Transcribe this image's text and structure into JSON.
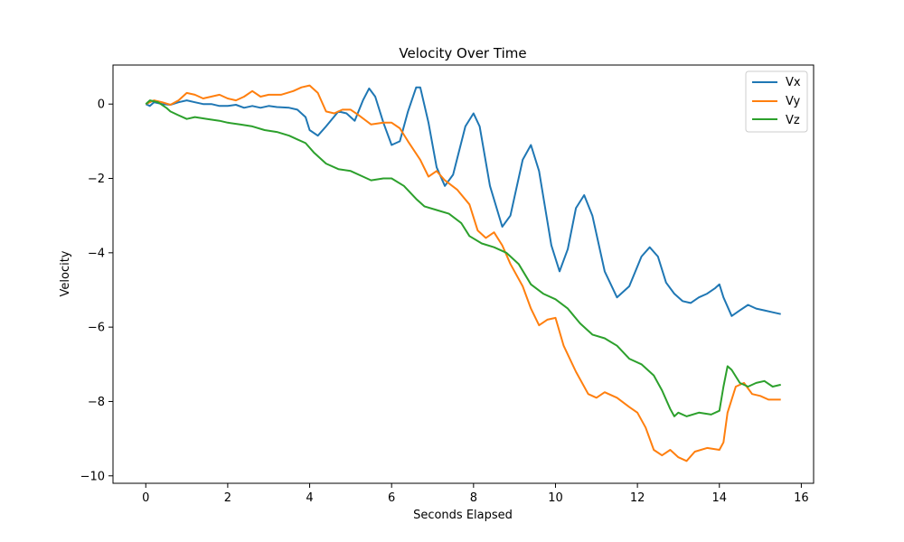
{
  "chart_data": {
    "type": "line",
    "title": "Velocity Over Time",
    "xlabel": "Seconds Elapsed",
    "ylabel": "Velocity",
    "xlim": [
      -0.8,
      16.3
    ],
    "ylim": [
      -10.2,
      1.05
    ],
    "xticks": [
      0,
      2,
      4,
      6,
      8,
      10,
      12,
      14,
      16
    ],
    "yticks": [
      0,
      -2,
      -4,
      -6,
      -8,
      -10
    ],
    "grid": false,
    "legend_position": "top-right",
    "series": [
      {
        "name": "Vx",
        "color": "#1f77b4",
        "points": [
          [
            0.0,
            0.0
          ],
          [
            0.1,
            -0.05
          ],
          [
            0.2,
            0.05
          ],
          [
            0.4,
            0.0
          ],
          [
            0.6,
            -0.02
          ],
          [
            0.8,
            0.05
          ],
          [
            1.0,
            0.1
          ],
          [
            1.2,
            0.05
          ],
          [
            1.4,
            0.0
          ],
          [
            1.6,
            0.0
          ],
          [
            1.8,
            -0.05
          ],
          [
            2.0,
            -0.05
          ],
          [
            2.2,
            -0.02
          ],
          [
            2.4,
            -0.1
          ],
          [
            2.6,
            -0.05
          ],
          [
            2.8,
            -0.1
          ],
          [
            3.0,
            -0.05
          ],
          [
            3.2,
            -0.08
          ],
          [
            3.5,
            -0.1
          ],
          [
            3.7,
            -0.15
          ],
          [
            3.9,
            -0.35
          ],
          [
            4.0,
            -0.7
          ],
          [
            4.2,
            -0.85
          ],
          [
            4.4,
            -0.6
          ],
          [
            4.7,
            -0.2
          ],
          [
            4.9,
            -0.25
          ],
          [
            5.1,
            -0.45
          ],
          [
            5.3,
            0.1
          ],
          [
            5.45,
            0.42
          ],
          [
            5.6,
            0.2
          ],
          [
            5.8,
            -0.5
          ],
          [
            6.0,
            -1.1
          ],
          [
            6.2,
            -1.0
          ],
          [
            6.4,
            -0.2
          ],
          [
            6.6,
            0.45
          ],
          [
            6.7,
            0.45
          ],
          [
            6.9,
            -0.5
          ],
          [
            7.1,
            -1.7
          ],
          [
            7.3,
            -2.2
          ],
          [
            7.5,
            -1.9
          ],
          [
            7.8,
            -0.6
          ],
          [
            8.0,
            -0.25
          ],
          [
            8.15,
            -0.6
          ],
          [
            8.4,
            -2.2
          ],
          [
            8.7,
            -3.3
          ],
          [
            8.9,
            -3.0
          ],
          [
            9.2,
            -1.5
          ],
          [
            9.4,
            -1.1
          ],
          [
            9.6,
            -1.8
          ],
          [
            9.9,
            -3.8
          ],
          [
            10.1,
            -4.5
          ],
          [
            10.3,
            -3.9
          ],
          [
            10.5,
            -2.8
          ],
          [
            10.7,
            -2.45
          ],
          [
            10.9,
            -3.0
          ],
          [
            11.2,
            -4.5
          ],
          [
            11.5,
            -5.2
          ],
          [
            11.8,
            -4.9
          ],
          [
            12.1,
            -4.1
          ],
          [
            12.3,
            -3.85
          ],
          [
            12.5,
            -4.1
          ],
          [
            12.7,
            -4.8
          ],
          [
            12.9,
            -5.1
          ],
          [
            13.1,
            -5.3
          ],
          [
            13.3,
            -5.35
          ],
          [
            13.5,
            -5.2
          ],
          [
            13.7,
            -5.1
          ],
          [
            13.9,
            -4.95
          ],
          [
            14.0,
            -4.85
          ],
          [
            14.1,
            -5.2
          ],
          [
            14.3,
            -5.7
          ],
          [
            14.5,
            -5.55
          ],
          [
            14.7,
            -5.4
          ],
          [
            14.9,
            -5.5
          ],
          [
            15.1,
            -5.55
          ],
          [
            15.3,
            -5.6
          ],
          [
            15.5,
            -5.65
          ]
        ]
      },
      {
        "name": "Vy",
        "color": "#ff7f0e",
        "points": [
          [
            0.0,
            0.0
          ],
          [
            0.2,
            0.1
          ],
          [
            0.4,
            0.05
          ],
          [
            0.6,
            -0.02
          ],
          [
            0.8,
            0.1
          ],
          [
            1.0,
            0.3
          ],
          [
            1.2,
            0.25
          ],
          [
            1.4,
            0.15
          ],
          [
            1.8,
            0.25
          ],
          [
            2.0,
            0.15
          ],
          [
            2.2,
            0.1
          ],
          [
            2.4,
            0.2
          ],
          [
            2.6,
            0.35
          ],
          [
            2.8,
            0.2
          ],
          [
            3.0,
            0.25
          ],
          [
            3.3,
            0.25
          ],
          [
            3.6,
            0.35
          ],
          [
            3.8,
            0.45
          ],
          [
            4.0,
            0.5
          ],
          [
            4.2,
            0.3
          ],
          [
            4.4,
            -0.2
          ],
          [
            4.6,
            -0.25
          ],
          [
            4.8,
            -0.15
          ],
          [
            5.0,
            -0.15
          ],
          [
            5.2,
            -0.3
          ],
          [
            5.5,
            -0.55
          ],
          [
            5.8,
            -0.5
          ],
          [
            6.0,
            -0.5
          ],
          [
            6.2,
            -0.65
          ],
          [
            6.4,
            -1.0
          ],
          [
            6.7,
            -1.5
          ],
          [
            6.9,
            -1.95
          ],
          [
            7.1,
            -1.8
          ],
          [
            7.3,
            -2.05
          ],
          [
            7.6,
            -2.3
          ],
          [
            7.9,
            -2.7
          ],
          [
            8.1,
            -3.4
          ],
          [
            8.3,
            -3.6
          ],
          [
            8.5,
            -3.45
          ],
          [
            8.7,
            -3.8
          ],
          [
            8.9,
            -4.3
          ],
          [
            9.2,
            -4.9
          ],
          [
            9.4,
            -5.5
          ],
          [
            9.6,
            -5.95
          ],
          [
            9.8,
            -5.8
          ],
          [
            10.0,
            -5.75
          ],
          [
            10.2,
            -6.5
          ],
          [
            10.5,
            -7.2
          ],
          [
            10.8,
            -7.8
          ],
          [
            11.0,
            -7.9
          ],
          [
            11.2,
            -7.75
          ],
          [
            11.5,
            -7.9
          ],
          [
            11.8,
            -8.15
          ],
          [
            12.0,
            -8.3
          ],
          [
            12.2,
            -8.7
          ],
          [
            12.4,
            -9.3
          ],
          [
            12.6,
            -9.45
          ],
          [
            12.8,
            -9.3
          ],
          [
            13.0,
            -9.5
          ],
          [
            13.2,
            -9.6
          ],
          [
            13.4,
            -9.35
          ],
          [
            13.7,
            -9.25
          ],
          [
            14.0,
            -9.3
          ],
          [
            14.1,
            -9.1
          ],
          [
            14.2,
            -8.3
          ],
          [
            14.4,
            -7.6
          ],
          [
            14.6,
            -7.5
          ],
          [
            14.8,
            -7.8
          ],
          [
            15.0,
            -7.85
          ],
          [
            15.2,
            -7.95
          ],
          [
            15.5,
            -7.95
          ]
        ]
      },
      {
        "name": "Vz",
        "color": "#2ca02c",
        "points": [
          [
            0.0,
            0.0
          ],
          [
            0.1,
            0.1
          ],
          [
            0.3,
            0.05
          ],
          [
            0.5,
            -0.1
          ],
          [
            0.6,
            -0.2
          ],
          [
            0.8,
            -0.3
          ],
          [
            1.0,
            -0.4
          ],
          [
            1.2,
            -0.35
          ],
          [
            1.5,
            -0.4
          ],
          [
            1.8,
            -0.45
          ],
          [
            2.0,
            -0.5
          ],
          [
            2.3,
            -0.55
          ],
          [
            2.6,
            -0.6
          ],
          [
            2.9,
            -0.7
          ],
          [
            3.2,
            -0.75
          ],
          [
            3.5,
            -0.85
          ],
          [
            3.7,
            -0.95
          ],
          [
            3.9,
            -1.05
          ],
          [
            4.1,
            -1.3
          ],
          [
            4.4,
            -1.6
          ],
          [
            4.7,
            -1.75
          ],
          [
            5.0,
            -1.8
          ],
          [
            5.3,
            -1.95
          ],
          [
            5.5,
            -2.05
          ],
          [
            5.8,
            -2.0
          ],
          [
            6.0,
            -2.0
          ],
          [
            6.3,
            -2.2
          ],
          [
            6.6,
            -2.55
          ],
          [
            6.8,
            -2.75
          ],
          [
            7.1,
            -2.85
          ],
          [
            7.4,
            -2.95
          ],
          [
            7.7,
            -3.2
          ],
          [
            7.9,
            -3.55
          ],
          [
            8.2,
            -3.75
          ],
          [
            8.5,
            -3.85
          ],
          [
            8.8,
            -4.0
          ],
          [
            9.1,
            -4.3
          ],
          [
            9.4,
            -4.85
          ],
          [
            9.7,
            -5.1
          ],
          [
            10.0,
            -5.25
          ],
          [
            10.3,
            -5.5
          ],
          [
            10.6,
            -5.9
          ],
          [
            10.9,
            -6.2
          ],
          [
            11.2,
            -6.3
          ],
          [
            11.5,
            -6.5
          ],
          [
            11.8,
            -6.85
          ],
          [
            12.1,
            -7.0
          ],
          [
            12.4,
            -7.3
          ],
          [
            12.6,
            -7.7
          ],
          [
            12.8,
            -8.2
          ],
          [
            12.9,
            -8.4
          ],
          [
            13.0,
            -8.3
          ],
          [
            13.2,
            -8.4
          ],
          [
            13.5,
            -8.3
          ],
          [
            13.8,
            -8.35
          ],
          [
            14.0,
            -8.25
          ],
          [
            14.1,
            -7.6
          ],
          [
            14.2,
            -7.05
          ],
          [
            14.3,
            -7.15
          ],
          [
            14.5,
            -7.5
          ],
          [
            14.7,
            -7.6
          ],
          [
            14.9,
            -7.5
          ],
          [
            15.1,
            -7.45
          ],
          [
            15.3,
            -7.6
          ],
          [
            15.5,
            -7.55
          ]
        ]
      }
    ]
  }
}
